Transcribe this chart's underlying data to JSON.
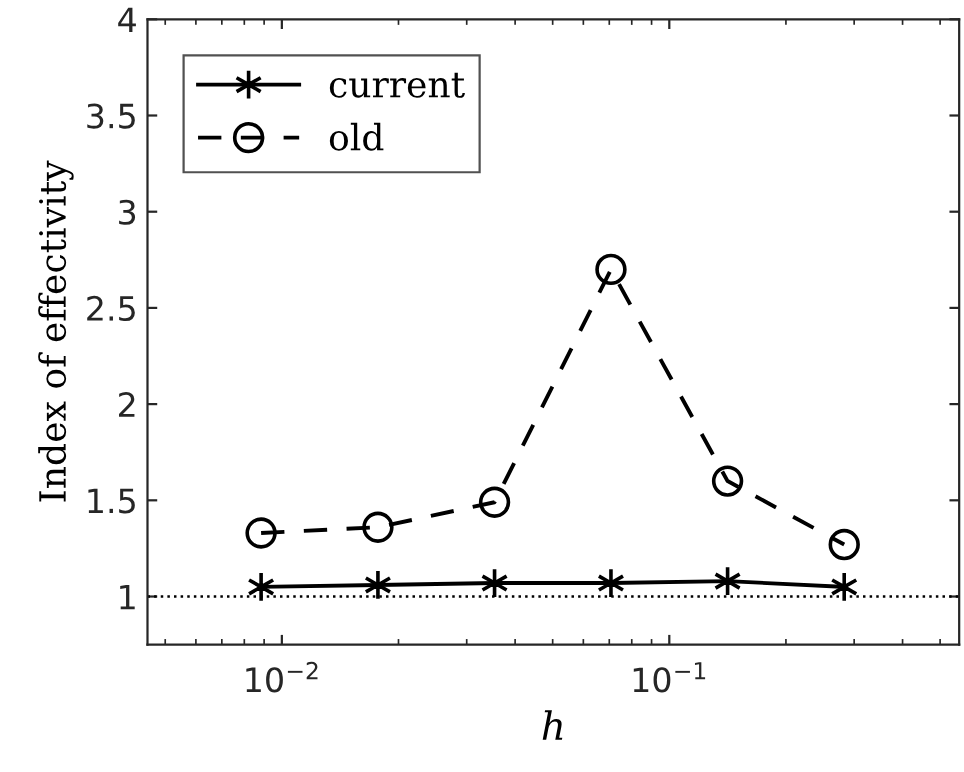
{
  "chart_data": {
    "type": "line",
    "xlabel": "h",
    "ylabel": "Index of effectivity",
    "log": "x",
    "x": [
      0.00884,
      0.0177,
      0.0354,
      0.0707,
      0.1414,
      0.2828
    ],
    "xlim": [
      0.0045,
      0.56
    ],
    "xticks": [
      {
        "value": 0.01,
        "label": "10$^{−2}$"
      },
      {
        "value": 0.1,
        "label": "10$^{−1}$"
      }
    ],
    "ylim": [
      0.75,
      4
    ],
    "yticks": [
      1,
      1.5,
      2,
      2.5,
      3,
      3.5,
      4
    ],
    "series": [
      {
        "name": "current",
        "color": "#000000",
        "marker": "cross",
        "line_style": "solid",
        "values": [
          1.05,
          1.06,
          1.07,
          1.07,
          1.08,
          1.05
        ]
      },
      {
        "name": "old",
        "color": "#000000",
        "marker": "circle",
        "line_style": "dashed",
        "values": [
          1.33,
          1.36,
          1.49,
          2.7,
          1.6,
          1.27
        ]
      }
    ],
    "ref_lines": [
      {
        "axis": "y",
        "value": 1,
        "color": "#000000",
        "line_style": "dotted"
      }
    ],
    "legend": "top left",
    "grid": false
  }
}
